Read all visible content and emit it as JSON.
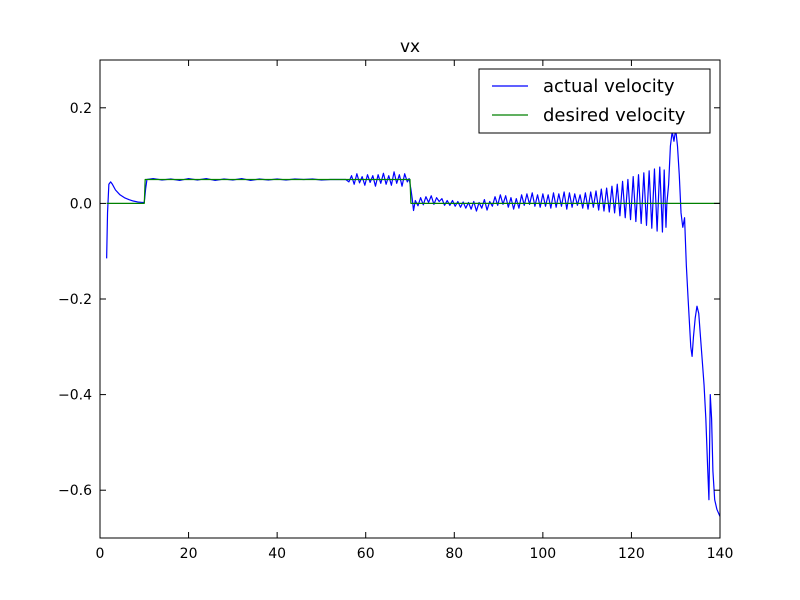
{
  "chart_data": {
    "type": "line",
    "title": "vx",
    "xlabel": "",
    "ylabel": "",
    "xlim": [
      0,
      140
    ],
    "ylim": [
      -0.7,
      0.3
    ],
    "xticks": [
      0,
      20,
      40,
      60,
      80,
      100,
      120,
      140
    ],
    "xtick_labels": [
      "0",
      "20",
      "40",
      "60",
      "80",
      "100",
      "120",
      "140"
    ],
    "yticks": [
      -0.6,
      -0.4,
      -0.2,
      0.0,
      0.2
    ],
    "ytick_labels": [
      "−0.6",
      "−0.4",
      "−0.2",
      "0.0",
      "0.2"
    ],
    "grid": false,
    "legend": "top-right",
    "series": [
      {
        "name": "actual velocity",
        "color": "#0000ff",
        "points": [
          [
            1.5,
            -0.115
          ],
          [
            1.7,
            -0.02
          ],
          [
            2.0,
            0.04
          ],
          [
            2.4,
            0.045
          ],
          [
            2.8,
            0.04
          ],
          [
            3.5,
            0.028
          ],
          [
            4.5,
            0.018
          ],
          [
            5.5,
            0.012
          ],
          [
            6.5,
            0.008
          ],
          [
            7.5,
            0.005
          ],
          [
            8.5,
            0.003
          ],
          [
            9.5,
            0.002
          ],
          [
            10.0,
            0.002
          ],
          [
            10.3,
            0.03
          ],
          [
            10.6,
            0.05
          ],
          [
            12,
            0.052
          ],
          [
            14,
            0.049
          ],
          [
            16,
            0.051
          ],
          [
            18,
            0.048
          ],
          [
            20,
            0.052
          ],
          [
            22,
            0.049
          ],
          [
            24,
            0.052
          ],
          [
            26,
            0.048
          ],
          [
            28,
            0.051
          ],
          [
            30,
            0.049
          ],
          [
            32,
            0.052
          ],
          [
            34,
            0.048
          ],
          [
            36,
            0.051
          ],
          [
            38,
            0.049
          ],
          [
            40,
            0.051
          ],
          [
            42,
            0.049
          ],
          [
            44,
            0.051
          ],
          [
            46,
            0.05
          ],
          [
            48,
            0.051
          ],
          [
            50,
            0.049
          ],
          [
            52,
            0.05
          ],
          [
            54,
            0.05
          ],
          [
            55.5,
            0.05
          ],
          [
            56.2,
            0.045
          ],
          [
            56.8,
            0.058
          ],
          [
            57.4,
            0.04
          ],
          [
            58.0,
            0.062
          ],
          [
            58.6,
            0.043
          ],
          [
            59.2,
            0.056
          ],
          [
            59.8,
            0.038
          ],
          [
            60.4,
            0.06
          ],
          [
            61.0,
            0.044
          ],
          [
            61.6,
            0.058
          ],
          [
            62.2,
            0.036
          ],
          [
            62.8,
            0.06
          ],
          [
            63.4,
            0.042
          ],
          [
            64.0,
            0.063
          ],
          [
            64.6,
            0.04
          ],
          [
            65.2,
            0.058
          ],
          [
            65.8,
            0.038
          ],
          [
            66.4,
            0.066
          ],
          [
            67.0,
            0.042
          ],
          [
            67.6,
            0.06
          ],
          [
            68.2,
            0.036
          ],
          [
            68.8,
            0.062
          ],
          [
            69.4,
            0.045
          ],
          [
            69.8,
            0.052
          ],
          [
            70.2,
            0.03
          ],
          [
            70.5,
            0.01
          ],
          [
            70.8,
            -0.015
          ],
          [
            71.2,
            0.006
          ],
          [
            71.8,
            -0.005
          ],
          [
            72.4,
            0.012
          ],
          [
            73.0,
            -0.003
          ],
          [
            73.6,
            0.014
          ],
          [
            74.2,
            0.002
          ],
          [
            74.8,
            0.016
          ],
          [
            75.4,
            -0.002
          ],
          [
            76.0,
            0.012
          ],
          [
            76.6,
            0.004
          ],
          [
            77.2,
            0.01
          ],
          [
            77.8,
            -0.004
          ],
          [
            78.4,
            0.006
          ],
          [
            79.0,
            -0.004
          ],
          [
            79.6,
            0.006
          ],
          [
            80.2,
            -0.006
          ],
          [
            80.8,
            0.004
          ],
          [
            81.4,
            -0.008
          ],
          [
            82.0,
            0.003
          ],
          [
            82.6,
            -0.01
          ],
          [
            83.2,
            0.002
          ],
          [
            83.8,
            -0.012
          ],
          [
            84.4,
            0.004
          ],
          [
            85.0,
            -0.016
          ],
          [
            85.6,
            0.002
          ],
          [
            86.2,
            -0.01
          ],
          [
            86.8,
            0.008
          ],
          [
            87.4,
            -0.014
          ],
          [
            88.0,
            0.004
          ],
          [
            88.6,
            -0.006
          ],
          [
            89.2,
            0.014
          ],
          [
            89.8,
            -0.004
          ],
          [
            90.4,
            0.018
          ],
          [
            91.0,
            -0.002
          ],
          [
            91.6,
            0.016
          ],
          [
            92.2,
            -0.008
          ],
          [
            92.8,
            0.012
          ],
          [
            93.4,
            -0.012
          ],
          [
            94.0,
            0.01
          ],
          [
            94.6,
            -0.01
          ],
          [
            95.2,
            0.018
          ],
          [
            95.8,
            -0.004
          ],
          [
            96.4,
            0.02
          ],
          [
            97.0,
            -0.002
          ],
          [
            97.6,
            0.022
          ],
          [
            98.2,
            -0.006
          ],
          [
            98.8,
            0.018
          ],
          [
            99.4,
            -0.008
          ],
          [
            100.0,
            0.02
          ],
          [
            100.6,
            -0.006
          ],
          [
            101.2,
            0.018
          ],
          [
            101.8,
            -0.01
          ],
          [
            102.4,
            0.022
          ],
          [
            103.0,
            -0.008
          ],
          [
            103.6,
            0.02
          ],
          [
            104.2,
            -0.006
          ],
          [
            104.8,
            0.024
          ],
          [
            105.4,
            -0.012
          ],
          [
            106.0,
            0.022
          ],
          [
            106.6,
            -0.008
          ],
          [
            107.2,
            0.02
          ],
          [
            107.8,
            -0.004
          ],
          [
            108.4,
            0.018
          ],
          [
            109.0,
            -0.01
          ],
          [
            109.6,
            0.022
          ],
          [
            110.2,
            -0.012
          ],
          [
            110.8,
            0.024
          ],
          [
            111.4,
            -0.008
          ],
          [
            112.0,
            0.026
          ],
          [
            112.6,
            -0.014
          ],
          [
            113.2,
            0.03
          ],
          [
            113.8,
            -0.016
          ],
          [
            114.4,
            0.032
          ],
          [
            115.0,
            -0.018
          ],
          [
            115.6,
            0.036
          ],
          [
            116.2,
            -0.02
          ],
          [
            116.8,
            0.04
          ],
          [
            117.4,
            -0.026
          ],
          [
            118.0,
            0.046
          ],
          [
            118.6,
            -0.03
          ],
          [
            119.2,
            0.05
          ],
          [
            119.8,
            -0.034
          ],
          [
            120.4,
            0.056
          ],
          [
            121.0,
            -0.038
          ],
          [
            121.6,
            0.06
          ],
          [
            122.2,
            -0.042
          ],
          [
            122.8,
            0.064
          ],
          [
            123.4,
            -0.046
          ],
          [
            124.0,
            0.068
          ],
          [
            124.6,
            -0.052
          ],
          [
            125.2,
            0.072
          ],
          [
            125.8,
            -0.058
          ],
          [
            126.4,
            0.076
          ],
          [
            127.0,
            -0.06
          ],
          [
            127.4,
            0.07
          ],
          [
            127.8,
            -0.05
          ],
          [
            128.0,
            0.0
          ],
          [
            128.4,
            0.04
          ],
          [
            128.8,
            0.12
          ],
          [
            129.2,
            0.15
          ],
          [
            129.6,
            0.13
          ],
          [
            130.0,
            0.155
          ],
          [
            130.4,
            0.12
          ],
          [
            130.8,
            0.06
          ],
          [
            131.2,
            -0.02
          ],
          [
            131.6,
            -0.05
          ],
          [
            132.0,
            -0.03
          ],
          [
            132.4,
            -0.13
          ],
          [
            132.8,
            -0.2
          ],
          [
            133.1,
            -0.25
          ],
          [
            133.4,
            -0.3
          ],
          [
            133.7,
            -0.32
          ],
          [
            134.0,
            -0.28
          ],
          [
            134.4,
            -0.24
          ],
          [
            134.8,
            -0.215
          ],
          [
            135.2,
            -0.23
          ],
          [
            135.6,
            -0.28
          ],
          [
            136.0,
            -0.33
          ],
          [
            136.4,
            -0.38
          ],
          [
            136.8,
            -0.45
          ],
          [
            137.2,
            -0.55
          ],
          [
            137.5,
            -0.62
          ],
          [
            137.8,
            -0.4
          ],
          [
            138.1,
            -0.45
          ],
          [
            138.4,
            -0.56
          ],
          [
            138.8,
            -0.62
          ],
          [
            139.3,
            -0.64
          ],
          [
            140.0,
            -0.655
          ]
        ]
      },
      {
        "name": "desired velocity",
        "color": "#008000",
        "points": [
          [
            1.5,
            0.0
          ],
          [
            10.0,
            0.0
          ],
          [
            10.2,
            0.05
          ],
          [
            70.0,
            0.05
          ],
          [
            70.2,
            0.0
          ],
          [
            140.0,
            0.0
          ]
        ]
      }
    ]
  }
}
